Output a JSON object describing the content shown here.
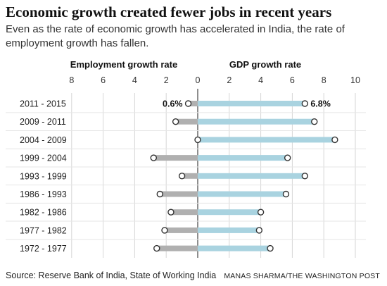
{
  "title": "Economic growth created fewer jobs in recent years",
  "subtitle": "Even as the rate of economic growth has accelerated in India, the rate of employment growth has fallen.",
  "source": "Source: Reserve Bank of India, State of Working India",
  "credit": "MANAS SHARMA/THE WASHINGTON POST",
  "colors": {
    "employment_bar": "#b0b0b0",
    "gdp_bar": "#a9d3e0",
    "dot_fill": "#ffffff",
    "dot_stroke": "#333333",
    "grid": "#d6d6d6",
    "row_line": "#e6e6e6",
    "axis": "#444444"
  },
  "chart_data": {
    "type": "bar",
    "layout": "diverging-dot-bar",
    "categories": [
      "2011 - 2015",
      "2009 - 2011",
      "2004 - 2009",
      "1999 - 2004",
      "1993 - 1999",
      "1986 - 1993",
      "1982 - 1986",
      "1977 - 1982",
      "1972 - 1977"
    ],
    "panels": [
      {
        "name": "Employment growth rate",
        "direction": "left",
        "ticks": [
          8,
          6,
          4,
          2,
          0
        ],
        "xlim": [
          0,
          8
        ],
        "values": [
          0.6,
          1.4,
          0.0,
          2.8,
          1.0,
          2.4,
          1.7,
          2.1,
          2.6
        ],
        "data_labels": [
          {
            "index": 0,
            "text": "0.6%"
          }
        ]
      },
      {
        "name": "GDP growth rate",
        "direction": "right",
        "ticks": [
          0,
          2,
          4,
          6,
          8,
          10
        ],
        "xlim": [
          0,
          10
        ],
        "values": [
          6.8,
          7.4,
          8.7,
          5.7,
          6.8,
          5.6,
          4.0,
          3.9,
          4.6
        ],
        "data_labels": [
          {
            "index": 0,
            "text": "6.8%"
          }
        ]
      }
    ],
    "grid": true
  }
}
